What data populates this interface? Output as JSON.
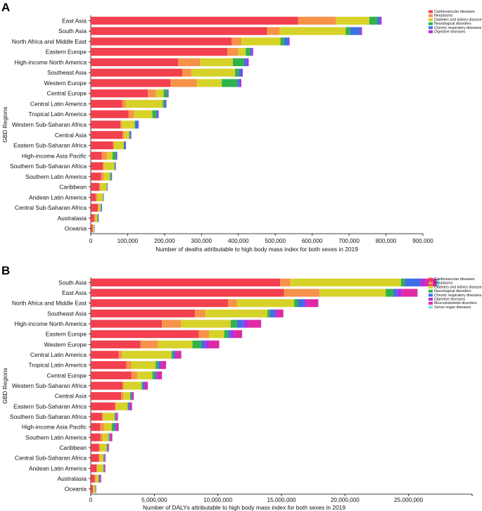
{
  "colors": {
    "cardiovascular": "#f2404f",
    "neoplasms": "#f7924a",
    "diabetes": "#d7d22a",
    "neurological": "#2fb34a",
    "chronic_respiratory": "#3f6fe6",
    "digestive": "#b12ee0",
    "musculoskeletal": "#e02aa4",
    "sense_organ": "#83e0ef"
  },
  "chart_data": [
    {
      "type": "bar",
      "orientation": "horizontal",
      "stacked": true,
      "panel": "A",
      "xlabel": "Number of deaths attributable to high body mass index for both sexes in 2019",
      "ylabel": "GBD Regions",
      "xlim": [
        0,
        900000
      ],
      "xticks": [
        0,
        100000,
        200000,
        300000,
        400000,
        500000,
        600000,
        700000,
        800000,
        900000
      ],
      "xtick_labels": [
        "0",
        "100,000",
        "200,000",
        "300,000",
        "400,000",
        "500,000",
        "600,000",
        "700,000",
        "800,000",
        "900,000"
      ],
      "legend_position": "top-right",
      "categories": [
        "East Asia",
        "South Asia",
        "North Africa and Middle East",
        "Eastern Europe",
        "High-income North America",
        "Southeast Asia",
        "Western Europe",
        "Central Europe",
        "Central Latin America",
        "Tropical Latin America",
        "Western Sub-Saharan Africa",
        "Central Asia",
        "Eastern Sub-Saharan Africa",
        "High-income Asia Pacific",
        "Southern Sub-Saharan Africa",
        "Southern Latin America",
        "Caribbean",
        "Andean Latin America",
        "Central Sub-Saharan Africa",
        "Australasia",
        "Oceania"
      ],
      "series": [
        {
          "name": "Cardiovascular diseases",
          "color_key": "cardiovascular",
          "values": [
            562000,
            478000,
            382000,
            370000,
            237000,
            248000,
            216000,
            155000,
            85000,
            102000,
            80000,
            86000,
            60000,
            30000,
            33000,
            28000,
            23000,
            14000,
            19000,
            9000,
            5000
          ]
        },
        {
          "name": "Neoplasms",
          "color_key": "neoplasms",
          "values": [
            103000,
            33000,
            26000,
            30000,
            60000,
            25000,
            71000,
            22000,
            10000,
            15000,
            4000,
            5000,
            3000,
            14000,
            3000,
            7000,
            3000,
            4000,
            1000,
            4000,
            1000
          ]
        },
        {
          "name": "Diabetes and kidney diseases",
          "color_key": "diabetes",
          "values": [
            90000,
            180000,
            106000,
            20000,
            88000,
            118000,
            68000,
            20000,
            100000,
            50000,
            35000,
            13000,
            26000,
            15000,
            28000,
            17000,
            17000,
            15000,
            7000,
            5000,
            3000
          ]
        },
        {
          "name": "Neurological disorders",
          "color_key": "neurological",
          "values": [
            22000,
            12000,
            10000,
            12000,
            30000,
            10000,
            42000,
            10000,
            5000,
            11000,
            2000,
            2000,
            1500,
            9000,
            1500,
            3000,
            1000,
            1000,
            500,
            2000,
            300
          ]
        },
        {
          "name": "Chronic respiratory diseases",
          "color_key": "chronic_respiratory",
          "values": [
            6000,
            28000,
            12000,
            3000,
            8000,
            8000,
            6000,
            2000,
            3000,
            4000,
            8000,
            3000,
            4000,
            3000,
            2000,
            2000,
            1000,
            1000,
            2500,
            1000,
            300
          ]
        },
        {
          "name": "Digestive diseases",
          "color_key": "digestive",
          "values": [
            5000,
            4000,
            3000,
            5000,
            5000,
            3000,
            5000,
            2000,
            2000,
            2000,
            1000,
            1000,
            1000,
            1000,
            500,
            500,
            500,
            400,
            300,
            300,
            200
          ]
        }
      ]
    },
    {
      "type": "bar",
      "orientation": "horizontal",
      "stacked": true,
      "panel": "B",
      "xlabel": "Number of DALYs attributable to high body mass index for both sexes in 2019",
      "ylabel": "GBD Regions",
      "xlim": [
        0,
        30000000
      ],
      "xticks": [
        0,
        5000000,
        10000000,
        15000000,
        20000000,
        25000000,
        30000000
      ],
      "xtick_labels": [
        "0",
        "5,000,000",
        "10,000,000",
        "15,000,000",
        "20,000,000",
        "25,000,000",
        ""
      ],
      "legend_position": "top-right",
      "categories": [
        "South Asia",
        "East Asia",
        "North Africa and Middle East",
        "Southeast Asia",
        "High-income North America",
        "Eastern Europe",
        "Western Europe",
        "Central Latin America",
        "Tropical Latin America",
        "Central Europe",
        "Western Sub-Saharan Africa",
        "Central Asia",
        "Eastern Sub-Saharan Africa",
        "Southern Sub-Saharan Africa",
        "High-income Asia Pacific",
        "Southern Latin America",
        "Caribbean",
        "Central Sub-Saharan Africa",
        "Andean Latin America",
        "Australasia",
        "Oceania"
      ],
      "series": [
        {
          "name": "Cardiovascular diseases",
          "color_key": "cardiovascular",
          "values": [
            14900000,
            15200000,
            10800000,
            8200000,
            5600000,
            8500000,
            3900000,
            2200000,
            2800000,
            3200000,
            2500000,
            2400000,
            1900000,
            900000,
            750000,
            750000,
            650000,
            650000,
            450000,
            300000,
            180000
          ]
        },
        {
          "name": "Neoplasms",
          "color_key": "neoplasms",
          "values": [
            800000,
            2800000,
            700000,
            800000,
            1500000,
            800000,
            1400000,
            250000,
            400000,
            450000,
            100000,
            150000,
            100000,
            80000,
            300000,
            200000,
            100000,
            50000,
            80000,
            100000,
            30000
          ]
        },
        {
          "name": "Diabetes and kidney diseases",
          "color_key": "diabetes",
          "values": [
            8700000,
            5200000,
            4500000,
            4900000,
            3900000,
            1200000,
            2700000,
            3900000,
            1900000,
            1200000,
            1400000,
            550000,
            900000,
            900000,
            600000,
            450000,
            500000,
            300000,
            450000,
            200000,
            150000
          ]
        },
        {
          "name": "Neurological disorders",
          "color_key": "neurological",
          "values": [
            300000,
            600000,
            300000,
            200000,
            500000,
            300000,
            700000,
            150000,
            200000,
            200000,
            80000,
            60000,
            60000,
            40000,
            200000,
            60000,
            40000,
            20000,
            30000,
            50000,
            10000
          ]
        },
        {
          "name": "Chronic respiratory diseases",
          "color_key": "chronic_respiratory",
          "values": [
            1200000,
            300000,
            500000,
            400000,
            500000,
            200000,
            300000,
            120000,
            150000,
            120000,
            150000,
            80000,
            80000,
            60000,
            100000,
            50000,
            40000,
            50000,
            40000,
            40000,
            10000
          ]
        },
        {
          "name": "Digestive diseases",
          "color_key": "digestive",
          "values": [
            400000,
            400000,
            200000,
            150000,
            400000,
            300000,
            300000,
            100000,
            120000,
            80000,
            60000,
            40000,
            50000,
            30000,
            50000,
            30000,
            20000,
            20000,
            20000,
            20000,
            10000
          ]
        },
        {
          "name": "Musculoskeletal disorders",
          "color_key": "musculoskeletal",
          "values": [
            900000,
            1200000,
            900000,
            500000,
            1000000,
            600000,
            800000,
            400000,
            350000,
            350000,
            200000,
            100000,
            150000,
            120000,
            200000,
            150000,
            80000,
            70000,
            80000,
            100000,
            30000
          ]
        },
        {
          "name": "Sense organ diseases",
          "color_key": "sense_organ",
          "values": [
            200000,
            30000,
            20000,
            15000,
            20000,
            10000,
            20000,
            10000,
            10000,
            10000,
            5000,
            5000,
            5000,
            3000,
            5000,
            3000,
            3000,
            2000,
            2000,
            2000,
            1000
          ]
        }
      ]
    }
  ]
}
